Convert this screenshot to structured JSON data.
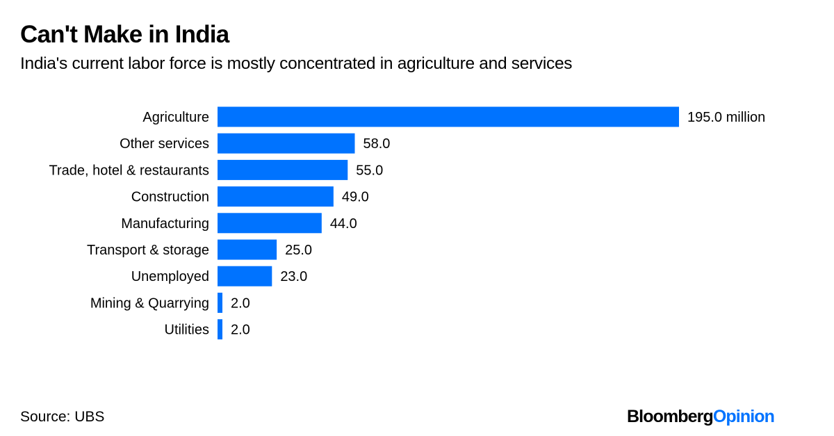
{
  "header": {
    "title": "Can't Make in India",
    "subtitle": "India's current labor force is mostly concentrated in agriculture and services"
  },
  "footer": {
    "source": "Source: UBS",
    "logo_part1": "Bloomberg",
    "logo_part2": "Opinion"
  },
  "colors": {
    "bar": "#0073ff",
    "logo_accent": "#0073ff"
  },
  "chart_data": {
    "type": "bar",
    "orientation": "horizontal",
    "title": "Can't Make in India",
    "subtitle": "India's current labor force is mostly concentrated in agriculture and services",
    "xlabel": "",
    "ylabel": "",
    "unit": "million",
    "grid": false,
    "legend": "none",
    "xlim": [
      0,
      195
    ],
    "categories": [
      "Agriculture",
      "Other services",
      "Trade, hotel & restaurants",
      "Construction",
      "Manufacturing",
      "Transport & storage",
      "Unemployed",
      "Mining & Quarrying",
      "Utilities"
    ],
    "values": [
      195.0,
      58.0,
      55.0,
      49.0,
      44.0,
      25.0,
      23.0,
      2.0,
      2.0
    ],
    "data_labels": [
      "195.0 million",
      "58.0",
      "55.0",
      "49.0",
      "44.0",
      "25.0",
      "23.0",
      "2.0",
      "2.0"
    ]
  }
}
